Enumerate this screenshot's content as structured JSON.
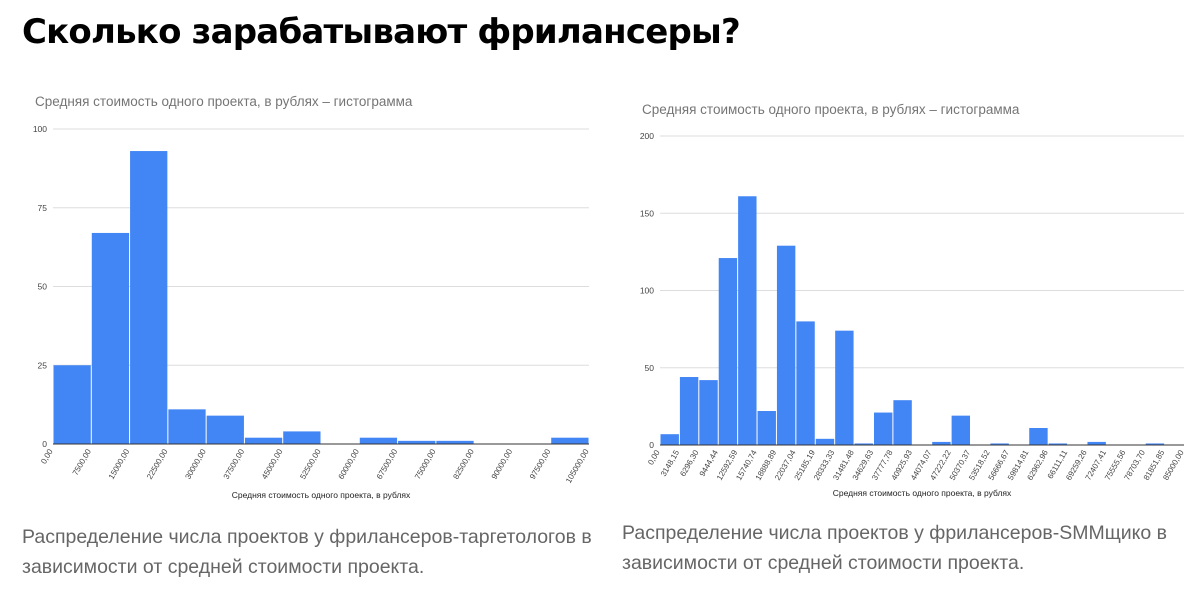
{
  "page": {
    "title": "Сколько зарабатывают фрилансеры?",
    "caption_left": "Распределение числа проектов у фрилансеров-таргетологов в зависимости от средней стоимости проекта.",
    "caption_right": "Распределение числа проектов у фрилансеров-SMMщико в зависимости от средней стоимости проекта."
  },
  "colors": {
    "bar": "#4285f4",
    "grid": "#dddddd",
    "title": "#757575"
  },
  "chart_data": [
    {
      "type": "bar",
      "title": "Средняя стоимость одного проекта, в рублях – гистограмма",
      "xlabel": "Средняя стоимость одного проекта, в рублях",
      "ylabel": "",
      "ylim": [
        0,
        100
      ],
      "yticks": [
        "0",
        "25",
        "50",
        "75",
        "100"
      ],
      "xticks": [
        "0,00",
        "7500,00",
        "15000,00",
        "22500,00",
        "30000,00",
        "37500,00",
        "45000,00",
        "52500,00",
        "60000,00",
        "67500,00",
        "75000,00",
        "82500,00",
        "90000,00",
        "97500,00",
        "105000,00"
      ],
      "values": [
        25,
        67,
        93,
        11,
        9,
        2,
        4,
        0,
        2,
        1,
        1,
        0,
        0,
        2
      ],
      "grid": true,
      "legend": "none"
    },
    {
      "type": "bar",
      "title": "Средняя стоимость одного проекта, в рублях – гистограмма",
      "xlabel": "Средняя стоимость одного проекта, в рублях",
      "ylabel": "",
      "ylim": [
        0,
        200
      ],
      "yticks": [
        "0",
        "50",
        "100",
        "150",
        "200"
      ],
      "xticks": [
        "0,00",
        "3148,15",
        "6296,30",
        "9444,44",
        "12592,59",
        "15740,74",
        "18888,89",
        "22037,04",
        "25185,19",
        "28333,33",
        "31481,48",
        "34629,63",
        "37777,78",
        "40925,93",
        "44074,07",
        "47222,22",
        "50370,37",
        "53518,52",
        "56666,67",
        "59814,81",
        "62962,96",
        "66111,11",
        "69259,26",
        "72407,41",
        "75555,56",
        "78703,70",
        "81851,85",
        "85000,00"
      ],
      "values": [
        7,
        44,
        42,
        121,
        161,
        22,
        129,
        80,
        4,
        74,
        1,
        21,
        29,
        0,
        2,
        19,
        0,
        1,
        0,
        11,
        1,
        0,
        2,
        0,
        0,
        1,
        0
      ],
      "grid": true,
      "legend": "none"
    }
  ]
}
